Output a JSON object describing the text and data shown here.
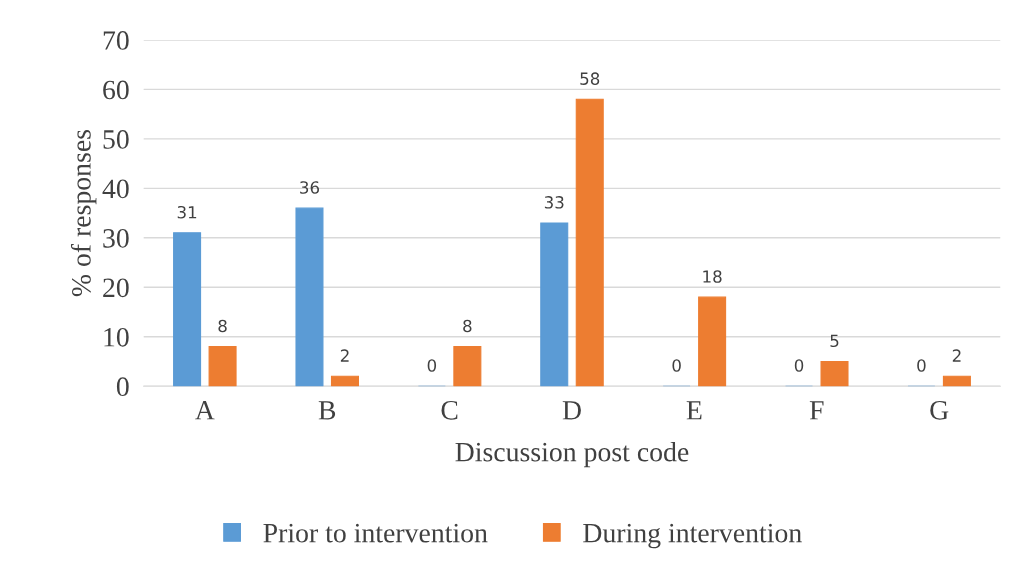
{
  "chart_data": {
    "type": "bar",
    "xlabel": "Discussion post code",
    "ylabel": "% of responses",
    "categories": [
      "A",
      "B",
      "C",
      "D",
      "E",
      "F",
      "G"
    ],
    "series": [
      {
        "name": "Prior to intervention",
        "color": "#5b9bd5",
        "values": [
          31,
          36,
          0,
          33,
          0,
          0,
          0
        ]
      },
      {
        "name": "During intervention",
        "color": "#ed7d31",
        "values": [
          8,
          2,
          8,
          58,
          18,
          5,
          2
        ]
      }
    ],
    "ylim": [
      0,
      70
    ],
    "yticks": [
      0,
      10,
      20,
      30,
      40,
      50,
      60,
      70
    ],
    "grid": "y",
    "legend": "bottom",
    "data_labels": true
  }
}
